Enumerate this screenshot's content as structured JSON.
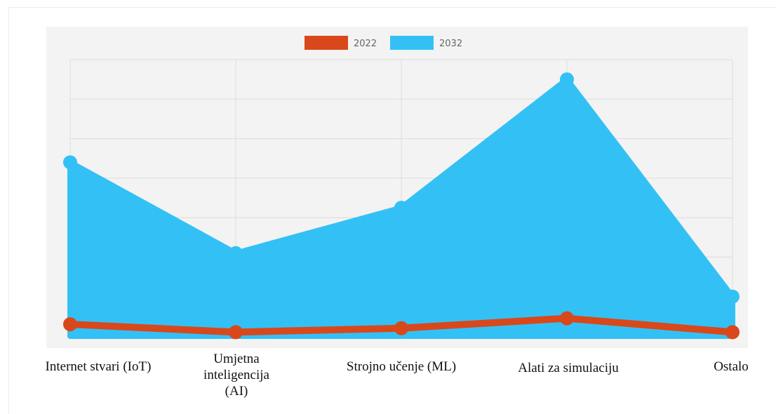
{
  "chart_data": {
    "type": "area",
    "categories": [
      "Internet stvari (IoT)",
      "Umjetna inteligencija (AI)",
      "Strojno učenje (ML)",
      "Alati za simulaciju",
      "Ostalo"
    ],
    "series": [
      {
        "name": "2022",
        "values": [
          3,
          1,
          2,
          4.5,
          1
        ],
        "color": "#d9481b"
      },
      {
        "name": "2032",
        "values": [
          44,
          21,
          32.5,
          65,
          10
        ],
        "color": "#33c1f5"
      }
    ],
    "ylim": [
      0,
      70
    ],
    "y_gridlines": [
      10,
      20,
      30,
      40,
      50,
      60,
      70
    ],
    "grid": true,
    "legend_position": "top-center",
    "title": "",
    "xlabel": "",
    "ylabel": ""
  }
}
